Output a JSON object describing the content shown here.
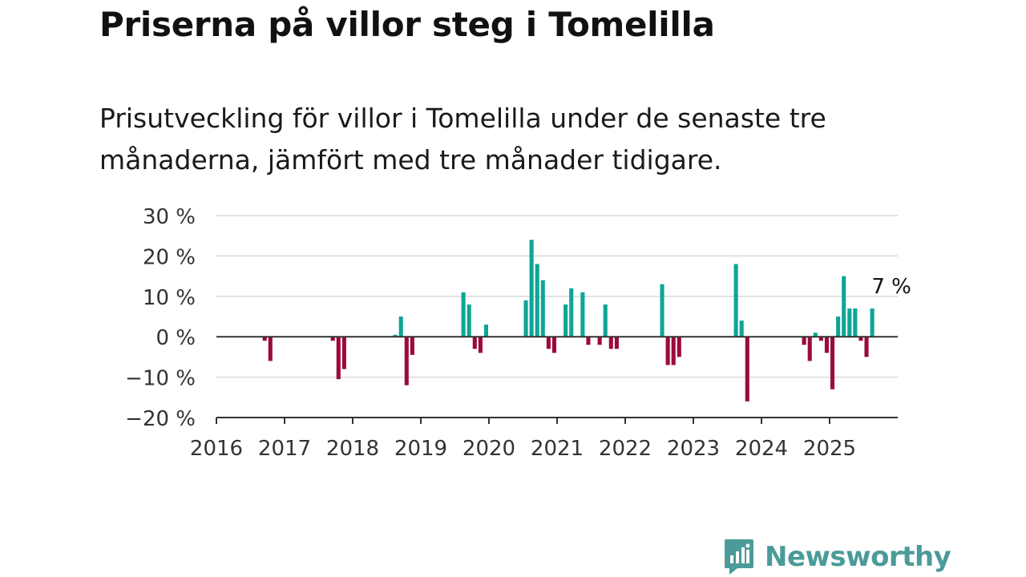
{
  "header": {
    "title": "Priserna på villor steg i Tomelilla",
    "subtitle": "Prisutveckling för villor i Tomelilla under de senaste tre månaderna, jämfört med tre månader tidigare."
  },
  "brand": {
    "name": "Newsworthy",
    "icon": "newsworthy-logo-icon",
    "color": "#4a9b99"
  },
  "chart_data": {
    "type": "bar",
    "ylim": [
      -20,
      30
    ],
    "y_ticks": [
      -20,
      -10,
      0,
      10,
      20,
      30
    ],
    "y_tick_labels": [
      "−20 %",
      "−10 %",
      "0 %",
      "10 %",
      "20 %",
      "30 %"
    ],
    "x_range": [
      "2016-01",
      "2025-12"
    ],
    "x_tick_labels": [
      "2016",
      "2017",
      "2018",
      "2019",
      "2020",
      "2021",
      "2022",
      "2023",
      "2024",
      "2025"
    ],
    "grid": true,
    "colors": {
      "positive": "#0ea597",
      "negative": "#9c0a3c"
    },
    "series": [
      {
        "x": [
          "2016-09",
          "2016-10",
          "2017-09",
          "2017-10",
          "2017-11",
          "2018-08",
          "2018-09",
          "2018-10",
          "2018-11",
          "2019-08",
          "2019-09",
          "2019-10",
          "2019-11",
          "2019-12",
          "2020-07",
          "2020-08",
          "2020-09",
          "2020-10",
          "2020-11",
          "2020-12",
          "2021-02",
          "2021-03",
          "2021-05",
          "2021-06",
          "2021-08",
          "2021-09",
          "2021-10",
          "2021-11",
          "2022-07",
          "2022-08",
          "2022-09",
          "2022-10",
          "2022-11",
          "2023-08",
          "2023-09",
          "2023-10",
          "2024-08",
          "2024-09",
          "2024-10",
          "2024-11",
          "2024-12",
          "2025-01",
          "2025-02",
          "2025-03",
          "2025-04",
          "2025-05",
          "2025-06",
          "2025-07",
          "2025-08"
        ],
        "values": [
          -1,
          -6,
          -1,
          -10.5,
          -8,
          0.5,
          5,
          -12,
          -4.5,
          11,
          8,
          -3,
          -4,
          3,
          9,
          24,
          18,
          14,
          -3,
          -4,
          8,
          12,
          11,
          -2,
          -2,
          8,
          -3,
          -3,
          13,
          -7,
          -7,
          -5,
          0,
          18,
          4,
          -16,
          -2,
          -6,
          1,
          -1,
          -4,
          -13,
          5,
          15,
          7,
          7,
          -1,
          -5,
          7
        ]
      }
    ],
    "annotation": {
      "x": "2025-08",
      "text": "7 %"
    }
  }
}
